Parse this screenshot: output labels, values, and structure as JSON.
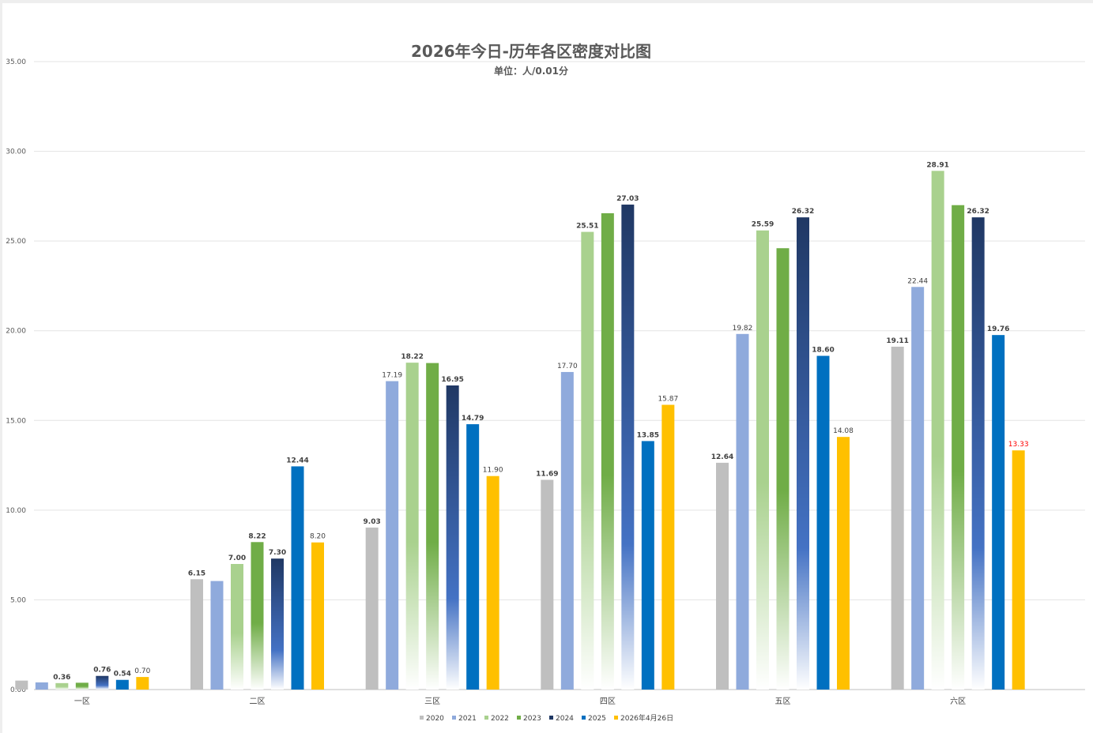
{
  "chart_data": {
    "type": "bar",
    "title": "2026年今日-历年各区密度对比图",
    "subtitle": "单位：人/0.01分",
    "categories": [
      "一区",
      "二区",
      "三区",
      "四区",
      "五区",
      "六区"
    ],
    "ylim": [
      0,
      35
    ],
    "yticks": [
      "0.00",
      "5.00",
      "10.00",
      "15.00",
      "20.00",
      "25.00",
      "30.00",
      "35.00"
    ],
    "grid": true,
    "legend_position": "bottom",
    "series": [
      {
        "name": "2020",
        "color": "#BFBFBF",
        "style": "solid",
        "values": [
          0.5,
          6.15,
          9.03,
          11.69,
          12.64,
          19.11
        ],
        "labels": [
          "",
          "6.15",
          "9.03",
          "11.69",
          "12.64",
          "19.11"
        ],
        "label_bold": [
          false,
          true,
          true,
          true,
          true,
          true
        ]
      },
      {
        "name": "2021",
        "color": "#8FAADC",
        "style": "solid",
        "values": [
          0.4,
          6.05,
          17.19,
          17.7,
          19.82,
          22.44
        ],
        "labels": [
          "",
          "",
          "17.19",
          "17.70",
          "19.82",
          "22.44"
        ],
        "label_bold": [
          false,
          false,
          false,
          false,
          false,
          false
        ]
      },
      {
        "name": "2022",
        "color": "#A9D18E",
        "style": "gradient",
        "values": [
          0.36,
          7.0,
          18.22,
          25.51,
          25.59,
          28.91
        ],
        "labels": [
          "0.36",
          "7.00",
          "18.22",
          "25.51",
          "25.59",
          "28.91"
        ],
        "label_bold": [
          true,
          true,
          true,
          true,
          true,
          true
        ]
      },
      {
        "name": "2023",
        "color": "#70AD47",
        "style": "gradient",
        "values": [
          0.38,
          8.22,
          18.2,
          26.55,
          24.6,
          27.0
        ],
        "labels": [
          "",
          "8.22",
          "",
          "",
          "",
          ""
        ],
        "label_bold": [
          false,
          true,
          false,
          false,
          false,
          false
        ]
      },
      {
        "name": "2024",
        "color": "#203864",
        "style": "gradient-blue",
        "values": [
          0.76,
          7.3,
          16.95,
          27.03,
          26.32,
          26.32
        ],
        "labels": [
          "0.76",
          "7.30",
          "16.95",
          "27.03",
          "26.32",
          "26.32"
        ],
        "label_bold": [
          true,
          true,
          true,
          true,
          true,
          true
        ]
      },
      {
        "name": "2025",
        "color": "#0070C0",
        "style": "solid",
        "values": [
          0.54,
          12.44,
          14.79,
          13.85,
          18.6,
          19.76
        ],
        "labels": [
          "0.54",
          "12.44",
          "14.79",
          "13.85",
          "18.60",
          "19.76"
        ],
        "label_bold": [
          true,
          true,
          true,
          true,
          true,
          true
        ]
      },
      {
        "name": "2026年4月26日",
        "color": "#FFC000",
        "style": "solid",
        "values": [
          0.7,
          8.2,
          11.9,
          15.87,
          14.08,
          13.33
        ],
        "labels": [
          "0.70",
          "8.20",
          "11.90",
          "15.87",
          "14.08",
          "13.33"
        ],
        "label_bold": [
          false,
          false,
          false,
          false,
          false,
          false
        ],
        "label_colors": [
          "#404040",
          "#404040",
          "#404040",
          "#404040",
          "#404040",
          "#FF0000"
        ]
      }
    ]
  }
}
